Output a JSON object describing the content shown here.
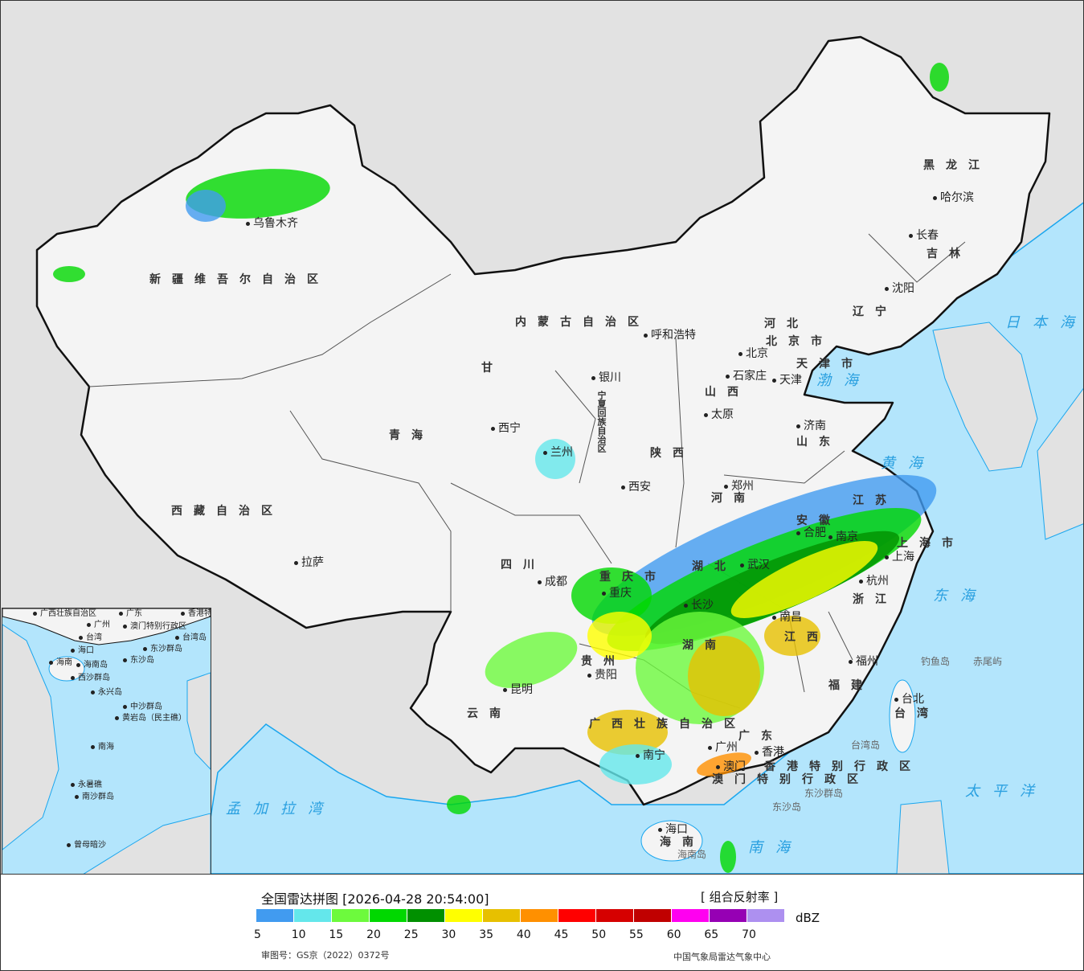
{
  "map": {
    "provinces": [
      "新疆维吾尔自治区",
      "西藏自治区",
      "青海",
      "甘",
      "内蒙古自治区",
      "黑龙江",
      "吉林",
      "辽宁",
      "河北",
      "山西",
      "山东",
      "陕西",
      "河南",
      "四川",
      "湖北",
      "湖南",
      "江西",
      "安徽",
      "江苏",
      "浙江",
      "福建",
      "广东",
      "广西壮族自治区",
      "云南",
      "贵州",
      "海南",
      "台湾",
      "宁夏回族自治区",
      "重庆市",
      "上海市",
      "香港特别行政区",
      "澳门特别行政区",
      "北京市",
      "天津市"
    ],
    "cities": [
      "乌鲁木齐",
      "拉萨",
      "西宁",
      "兰州",
      "银川",
      "呼和浩特",
      "北京",
      "天津",
      "石家庄",
      "太原",
      "济南",
      "郑州",
      "西安",
      "成都",
      "重庆",
      "武汉",
      "合肥",
      "南京",
      "上海",
      "杭州",
      "长沙",
      "南昌",
      "福州",
      "贵阳",
      "昆明",
      "南宁",
      "广州",
      "香港",
      "澳门",
      "海口",
      "台北",
      "哈尔滨",
      "长春",
      "沈阳"
    ],
    "seas": [
      "日本海",
      "渤海",
      "黄海",
      "东海",
      "太平洋",
      "南海",
      "孟加拉湾"
    ],
    "islands": [
      "钓鱼岛",
      "赤尾屿",
      "台湾岛",
      "东沙群岛",
      "东沙岛",
      "海南岛"
    ],
    "inset_labels": [
      "广西壮族自治区",
      "广州",
      "广东",
      "香港特别行政区",
      "澳门特别行政区",
      "台湾",
      "台湾岛",
      "东沙群岛",
      "东沙岛",
      "海口",
      "海南",
      "海南岛",
      "西沙群岛",
      "永兴岛",
      "中沙群岛",
      "黄岩岛（民主礁）",
      "南海",
      "永暑礁",
      "南沙群岛",
      "曾母暗沙"
    ]
  },
  "legend": {
    "title": "全国雷达拼图 [2026-04-28 20:54:00]",
    "product": "[ 组合反射率 ]",
    "unit": "dBZ",
    "ticks": [
      "5",
      "10",
      "15",
      "20",
      "25",
      "30",
      "35",
      "40",
      "45",
      "50",
      "55",
      "60",
      "65",
      "70"
    ],
    "colors": [
      "#419bf0",
      "#64e7eb",
      "#6dfa3d",
      "#00d800",
      "#019000",
      "#ffff00",
      "#e7c000",
      "#ff9000",
      "#ff0000",
      "#d60000",
      "#c00000",
      "#ff00f0",
      "#9600b4",
      "#ad90f0"
    ],
    "approval_number": "审图号：GS京（2022）0372号",
    "agency": "中国气象局雷达气象中心"
  },
  "colors": {
    "sea": "#b3e5fc",
    "land": "#f4f4f4",
    "foreign_land": "#e2e2e2",
    "coast": "#1aa6ee",
    "border": "#111111"
  }
}
